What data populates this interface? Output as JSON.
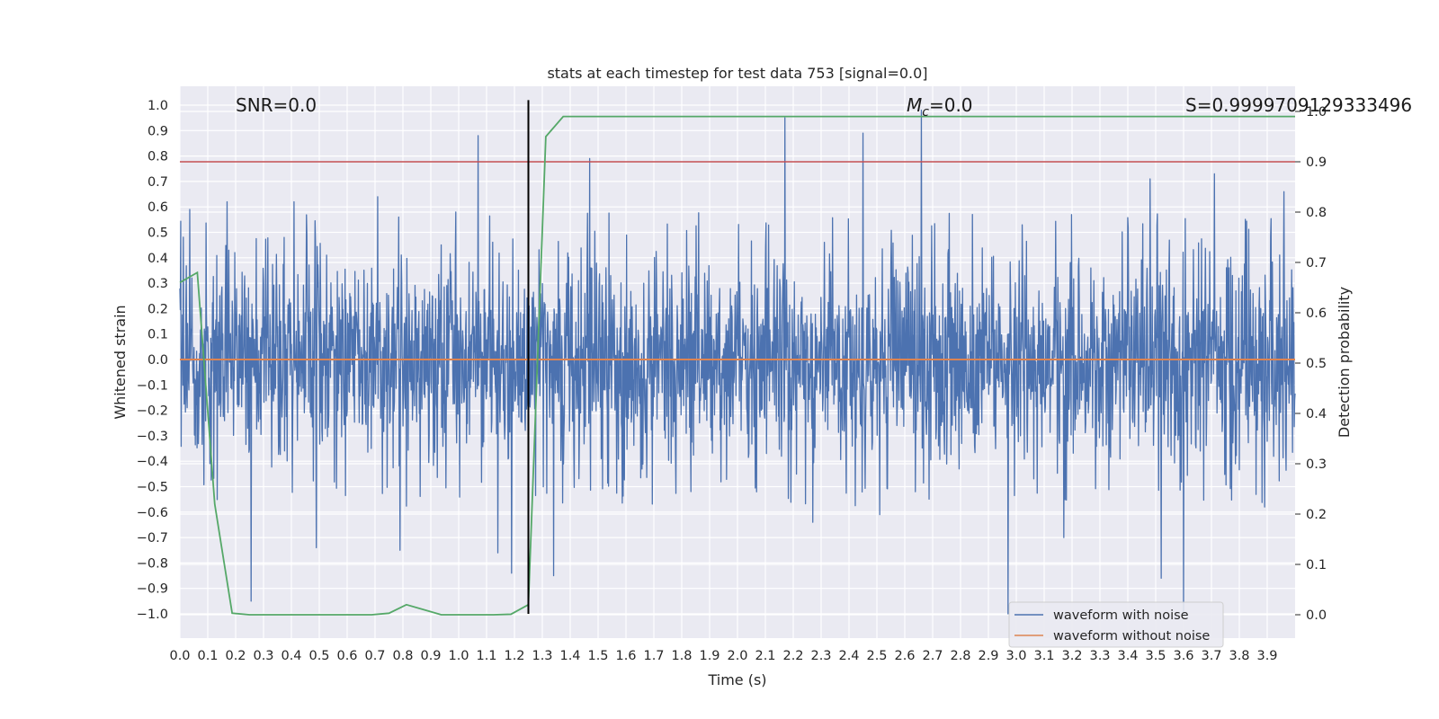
{
  "chart_data": {
    "type": "line",
    "title": "stats at each timestep for test data 753 [signal=0.0]",
    "xlabel": "Time (s)",
    "ylabel": "Whitened strain",
    "ylabel_right": "Detection probability",
    "xlim": [
      0.0,
      4.0
    ],
    "ylim": [
      -1.1,
      1.1
    ],
    "ylim_right": [
      -0.05,
      1.0
    ],
    "x_ticks": [
      "0.0",
      "0.1",
      "0.2",
      "0.3",
      "0.4",
      "0.5",
      "0.6",
      "0.7",
      "0.8",
      "0.9",
      "1.0",
      "1.1",
      "1.2",
      "1.3",
      "1.4",
      "1.5",
      "1.6",
      "1.7",
      "1.8",
      "1.9",
      "2.0",
      "2.1",
      "2.2",
      "2.3",
      "2.4",
      "2.5",
      "2.6",
      "2.7",
      "2.8",
      "2.9",
      "3.0",
      "3.1",
      "3.2",
      "3.3",
      "3.4",
      "3.5",
      "3.6",
      "3.7",
      "3.8",
      "3.9"
    ],
    "y_ticks": [
      "1.0",
      "0.9",
      "0.8",
      "0.7",
      "0.6",
      "0.5",
      "0.4",
      "0.3",
      "0.2",
      "0.1",
      "0.0",
      "-0.1",
      "-0.2",
      "-0.3",
      "-0.4",
      "-0.5",
      "-0.6",
      "-0.7",
      "-0.8",
      "-0.9",
      "-1.0"
    ],
    "y_ticks_right": [
      "1.0",
      "0.9",
      "0.8",
      "0.7",
      "0.6",
      "0.5",
      "0.4",
      "0.3",
      "0.2",
      "0.1",
      "0.0"
    ],
    "grid": true,
    "legend_position": "bottom-right",
    "annotations": {
      "snr": "SNR=0.0",
      "mc_symbol": "M",
      "mc_sub": "c",
      "mc_value": "=0.0",
      "s": "S=0.9999709129333496"
    },
    "threshold_line": {
      "y_right": 0.9,
      "color": "#c44e52"
    },
    "marker_line": {
      "x": 1.25,
      "color": "#000000"
    },
    "series": [
      {
        "name": "waveform with noise",
        "color": "#4c72b0",
        "axis": "left",
        "note_amplitude": "noise band approximately -0.6 to 0.6 with spikes up to 0.98 and down to -1.0",
        "spikes": [
          {
            "x": 0.035,
            "y": 0.59
          },
          {
            "x": 0.17,
            "y": 0.62
          },
          {
            "x": 0.255,
            "y": -0.95
          },
          {
            "x": 0.41,
            "y": 0.62
          },
          {
            "x": 0.49,
            "y": -0.74
          },
          {
            "x": 0.71,
            "y": 0.64
          },
          {
            "x": 0.79,
            "y": -0.75
          },
          {
            "x": 1.07,
            "y": 0.88
          },
          {
            "x": 1.14,
            "y": -0.76
          },
          {
            "x": 1.19,
            "y": -0.84
          },
          {
            "x": 1.34,
            "y": -0.85
          },
          {
            "x": 1.47,
            "y": 0.79
          },
          {
            "x": 2.17,
            "y": 0.95
          },
          {
            "x": 2.27,
            "y": -0.64
          },
          {
            "x": 2.45,
            "y": 0.89
          },
          {
            "x": 2.51,
            "y": -0.61
          },
          {
            "x": 2.66,
            "y": 0.98
          },
          {
            "x": 2.97,
            "y": -1.0
          },
          {
            "x": 3.17,
            "y": -0.7
          },
          {
            "x": 3.48,
            "y": 0.71
          },
          {
            "x": 3.52,
            "y": -0.86
          },
          {
            "x": 3.6,
            "y": -1.0
          },
          {
            "x": 3.71,
            "y": 0.73
          },
          {
            "x": 3.89,
            "y": -0.58
          },
          {
            "x": 3.96,
            "y": 0.66
          }
        ]
      },
      {
        "name": "waveform without noise",
        "color": "#dd8452",
        "axis": "left",
        "x": [
          0.0,
          4.0
        ],
        "y": [
          0.0,
          0.0
        ]
      },
      {
        "name": "",
        "color": "#55a868",
        "axis": "right",
        "x": [
          0.0,
          0.0625,
          0.125,
          0.1875,
          0.25,
          0.3125,
          0.375,
          0.4375,
          0.5,
          0.5625,
          0.625,
          0.6875,
          0.75,
          0.8125,
          0.875,
          0.9375,
          1.0,
          1.0625,
          1.125,
          1.1875,
          1.25,
          1.3125,
          1.375,
          1.4375,
          4.0
        ],
        "y": [
          0.66,
          0.68,
          0.22,
          0.003,
          0.0,
          0.0,
          0.0,
          0.0,
          0.0,
          0.0,
          0.0,
          0.0,
          0.003,
          0.02,
          0.01,
          0.0,
          0.0,
          0.0,
          0.0,
          0.001,
          0.02,
          0.95,
          0.99,
          0.99,
          0.99
        ]
      }
    ]
  }
}
